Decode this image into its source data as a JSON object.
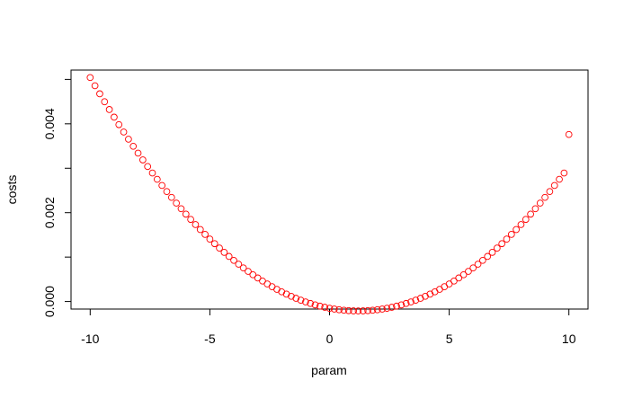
{
  "chart_data": {
    "type": "scatter",
    "title": "",
    "xlabel": "param",
    "ylabel": "costs",
    "xlim": [
      -10.8,
      10.8
    ],
    "ylim": [
      -0.00017,
      0.00521
    ],
    "xticks": [
      -10,
      -5,
      0,
      5,
      10
    ],
    "xtick_labels": [
      "-10",
      "-5",
      "0",
      "5",
      "10"
    ],
    "yticks": [
      0.0,
      0.001,
      0.002,
      0.003,
      0.004,
      0.005
    ],
    "ytick_labels": [
      "0.000",
      "",
      "0.002",
      "",
      "0.004",
      ""
    ],
    "grid": false,
    "marker": "open-circle",
    "color": "#ff0000",
    "series": [
      {
        "x": [
          -10.0,
          -9.8,
          -9.6,
          -9.4,
          -9.2,
          -9.0,
          -8.8,
          -8.6,
          -8.4,
          -8.2,
          -8.0,
          -7.8,
          -7.6,
          -7.4,
          -7.2,
          -7.0,
          -6.8,
          -6.6,
          -6.4,
          -6.2,
          -6.0,
          -5.8,
          -5.6,
          -5.4,
          -5.2,
          -5.0,
          -4.8,
          -4.6,
          -4.4,
          -4.2,
          -4.0,
          -3.8,
          -3.6,
          -3.4,
          -3.2,
          -3.0,
          -2.8,
          -2.6,
          -2.4,
          -2.2,
          -2.0,
          -1.8,
          -1.6,
          -1.4,
          -1.2,
          -1.0,
          -0.8,
          -0.6,
          -0.4,
          -0.2,
          0.0,
          0.2,
          0.4,
          0.6,
          0.8,
          1.0,
          1.2,
          1.4,
          1.6,
          1.8,
          2.0,
          2.2,
          2.4,
          2.6,
          2.8,
          3.0,
          3.2,
          3.4,
          3.6,
          3.8,
          4.0,
          4.2,
          4.4,
          4.6,
          4.8,
          5.0,
          5.2,
          5.4,
          5.6,
          5.8,
          6.0,
          6.2,
          6.4,
          6.6,
          6.8,
          7.0,
          7.2,
          7.4,
          7.6,
          7.8,
          8.0,
          8.2,
          8.4,
          8.6,
          8.8,
          9.0,
          9.2,
          9.4,
          9.6,
          9.8,
          10.0
        ],
        "y": [
          0.005042,
          0.004857,
          0.004676,
          0.004497,
          0.004322,
          0.00415,
          0.003982,
          0.003816,
          0.003654,
          0.003495,
          0.00334,
          0.003188,
          0.003039,
          0.002893,
          0.002751,
          0.002612,
          0.002476,
          0.002344,
          0.002215,
          0.002089,
          0.001967,
          0.001848,
          0.001732,
          0.00162,
          0.001511,
          0.001405,
          0.001302,
          0.001203,
          0.001107,
          0.001015,
          0.000926,
          0.00084,
          0.000757,
          0.000678,
          0.000602,
          0.00053,
          0.000461,
          0.000395,
          0.000333,
          0.000274,
          0.000218,
          0.000166,
          0.000117,
          7.2e-05,
          3e-05,
          -9e-06,
          -4.4e-05,
          -7.6e-05,
          -0.000105,
          -0.00013,
          -0.000152,
          -0.00017,
          -0.000185,
          -0.000197,
          -0.000205,
          -0.00021,
          -0.000212,
          -0.00021,
          -0.000205,
          -0.000197,
          -0.000185,
          -0.00017,
          -0.000152,
          -0.00013,
          -0.000105,
          -7.6e-05,
          -4.4e-05,
          -9e-06,
          3e-05,
          7.2e-05,
          0.000117,
          0.000166,
          0.000218,
          0.000274,
          0.000333,
          0.000395,
          0.000461,
          0.00053,
          0.000602,
          0.000678,
          0.000757,
          0.00084,
          0.000926,
          0.001015,
          0.001107,
          0.001203,
          0.001302,
          0.001405,
          0.001511,
          0.00162,
          0.001732,
          0.001848,
          0.001967,
          0.002089,
          0.002215,
          0.002344,
          0.002476,
          0.002612,
          0.002751,
          0.002893,
          0.00376
        ]
      }
    ]
  }
}
